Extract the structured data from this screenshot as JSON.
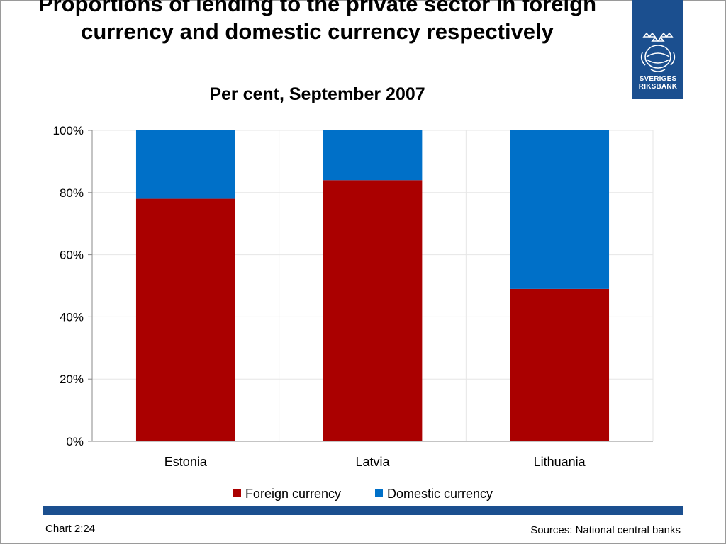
{
  "slide": {
    "title": "Proportions of lending to the private sector in foreign currency and domestic currency respectively",
    "subtitle": "Per cent, September 2007",
    "chart_number": "Chart 2:24",
    "sources": "Sources: National central banks",
    "logo_text_line1": "SVERIGES",
    "logo_text_line2": "RIKSBANK",
    "logo_color": "#1b4f8f"
  },
  "chart_data": {
    "type": "bar",
    "stacked": true,
    "title": "Proportions of lending to the private sector in foreign currency and domestic currency respectively",
    "subtitle": "Per cent, September 2007",
    "categories": [
      "Estonia",
      "Latvia",
      "Lithuania"
    ],
    "series": [
      {
        "name": "Foreign currency",
        "color": "#aa0000",
        "values": [
          78,
          84,
          49
        ]
      },
      {
        "name": "Domestic currency",
        "color": "#0070c8",
        "values": [
          22,
          16,
          51
        ]
      }
    ],
    "ylim": [
      0,
      100
    ],
    "yticks": [
      "0%",
      "20%",
      "40%",
      "60%",
      "80%",
      "100%"
    ],
    "grid": true,
    "legend": "bottom"
  }
}
